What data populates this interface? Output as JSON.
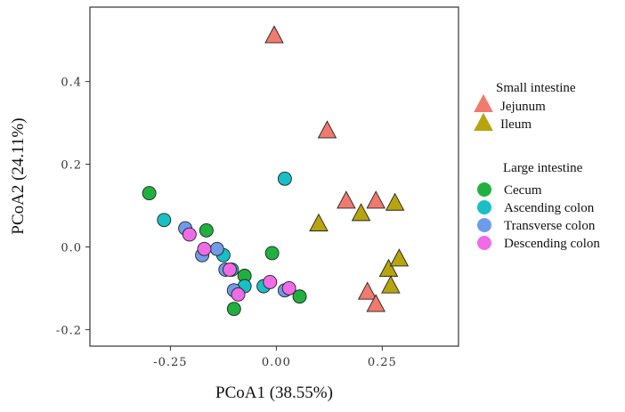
{
  "chart_data": {
    "type": "scatter",
    "xlabel": "PCoA1 (38.55%)",
    "ylabel": "PCoA2 (24.11%)",
    "xlim": [
      -0.44,
      0.43
    ],
    "ylim": [
      -0.24,
      0.58
    ],
    "x_ticks": [
      -0.25,
      0.0,
      0.25
    ],
    "x_tick_labels": [
      "-0.25",
      "0.00",
      "0.25"
    ],
    "y_ticks": [
      -0.2,
      0.0,
      0.2,
      0.4
    ],
    "y_tick_labels": [
      "-0.2",
      "0.0",
      "0.2",
      "0.4"
    ],
    "grid": false,
    "legend_groups": [
      {
        "title": "Small intestine",
        "entries": [
          {
            "name": "Jejunum",
            "shape": "triangle",
            "color": "#F07A6E"
          },
          {
            "name": "Ileum",
            "shape": "triangle",
            "color": "#B7A40F"
          }
        ]
      },
      {
        "title": "Large intestine",
        "entries": [
          {
            "name": "Cecum",
            "shape": "circle",
            "color": "#20B040"
          },
          {
            "name": "Ascending  colon",
            "shape": "circle",
            "color": "#19BFC4"
          },
          {
            "name": "Transverse  colon",
            "shape": "circle",
            "color": "#6F9CE8"
          },
          {
            "name": "Descending colon",
            "shape": "circle",
            "color": "#F06BE8"
          }
        ]
      }
    ],
    "series": [
      {
        "name": "Jejunum",
        "shape": "triangle",
        "color": "#F07A6E",
        "points": [
          [
            -0.005,
            0.51
          ],
          [
            0.12,
            0.28
          ],
          [
            0.165,
            0.11
          ],
          [
            0.235,
            0.11
          ],
          [
            0.215,
            -0.11
          ],
          [
            0.235,
            -0.14
          ]
        ]
      },
      {
        "name": "Ileum",
        "shape": "triangle",
        "color": "#B7A40F",
        "points": [
          [
            0.1,
            0.055
          ],
          [
            0.2,
            0.08
          ],
          [
            0.28,
            0.105
          ],
          [
            0.265,
            -0.055
          ],
          [
            0.29,
            -0.03
          ],
          [
            0.27,
            -0.095
          ]
        ]
      },
      {
        "name": "Cecum",
        "shape": "circle",
        "color": "#20B040",
        "points": [
          [
            -0.3,
            0.13
          ],
          [
            -0.165,
            0.04
          ],
          [
            -0.01,
            -0.015
          ],
          [
            -0.075,
            -0.07
          ],
          [
            0.055,
            -0.12
          ],
          [
            -0.1,
            -0.15
          ]
        ]
      },
      {
        "name": "Ascending  colon",
        "shape": "circle",
        "color": "#19BFC4",
        "points": [
          [
            0.02,
            0.165
          ],
          [
            -0.265,
            0.065
          ],
          [
            -0.125,
            -0.02
          ],
          [
            -0.105,
            -0.055
          ],
          [
            -0.075,
            -0.095
          ],
          [
            -0.03,
            -0.095
          ]
        ]
      },
      {
        "name": "Transverse  colon",
        "shape": "circle",
        "color": "#6F9CE8",
        "points": [
          [
            -0.215,
            0.045
          ],
          [
            -0.14,
            -0.005
          ],
          [
            -0.175,
            -0.02
          ],
          [
            -0.12,
            -0.055
          ],
          [
            -0.1,
            -0.105
          ],
          [
            0.02,
            -0.105
          ]
        ]
      },
      {
        "name": "Descending colon",
        "shape": "circle",
        "color": "#F06BE8",
        "points": [
          [
            -0.205,
            0.03
          ],
          [
            -0.17,
            -0.005
          ],
          [
            -0.11,
            -0.055
          ],
          [
            -0.015,
            -0.085
          ],
          [
            -0.09,
            -0.115
          ],
          [
            0.03,
            -0.1
          ]
        ]
      }
    ]
  }
}
